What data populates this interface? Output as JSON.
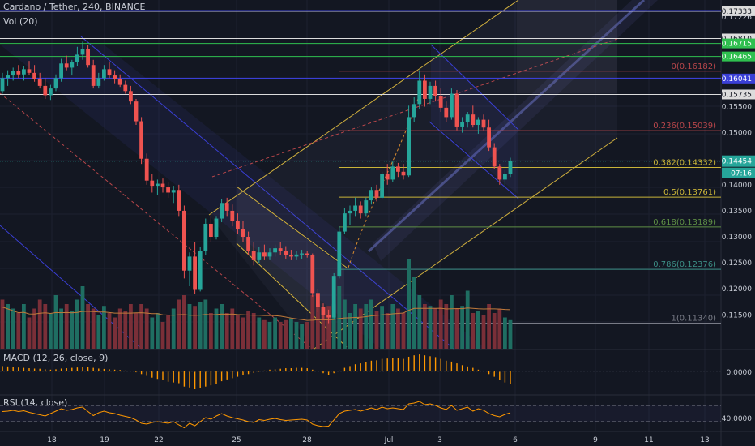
{
  "header": {
    "symbol_title": "Cardano / Tether, 240, BINANCE",
    "volume_label": "Vol (20)",
    "macd_label": "MACD (12, 26, close, 9)",
    "rsi_label": "RSI (14, close)",
    "countdown": "07:16"
  },
  "colors": {
    "background": "#131722",
    "up": "#26a69a",
    "down": "#ef5350",
    "vol_up": "#1f6e62",
    "vol_down": "#7a2f38",
    "channel": "#3a3fd6",
    "channel_yellow": "#d6b43a",
    "fib_red": "#b8464a",
    "fib_yellow": "#c9b438",
    "fib_green": "#5f8f45",
    "fib_teal": "#3c8f86",
    "fib_grey": "#787b86",
    "rsi": "#ff9800",
    "macd_hist": "#ff9800"
  },
  "chart_data": {
    "type": "candlestick",
    "title": "Cardano / Tether, 240, BINANCE",
    "x_tick_labels": [
      "18",
      "19",
      "22",
      "25",
      "28",
      "Jul",
      "3",
      "6",
      "9",
      "11",
      "13"
    ],
    "price_axis_ticks": [
      "0.17339",
      "0.17333",
      "0.17226",
      "0.16810",
      "0.16715",
      "0.16465",
      "0.16041",
      "0.15735",
      "0.15500",
      "0.15000",
      "0.14454",
      "0.14000",
      "0.13500",
      "0.13000",
      "0.12500",
      "0.12000",
      "0.11500"
    ],
    "price_range": [
      0.1085,
      0.1755
    ],
    "last_price": "0.14454",
    "fibonacci_levels": [
      {
        "ratio": "0",
        "price": "0.16182",
        "label": "0(0.16182)",
        "color": "#b8464a"
      },
      {
        "ratio": "0.236",
        "price": "0.15039",
        "label": "0.236(0.15039)",
        "color": "#b8464a"
      },
      {
        "ratio": "0.382",
        "price": "0.14332",
        "label": "0.382(0.14332)",
        "color": "#c9b438"
      },
      {
        "ratio": "0.5",
        "price": "0.13761",
        "label": "0.5(0.13761)",
        "color": "#c9b438"
      },
      {
        "ratio": "0.618",
        "price": "0.13189",
        "label": "0.618(0.13189)",
        "color": "#5f8f45"
      },
      {
        "ratio": "0.786",
        "price": "0.12376",
        "label": "0.786(0.12376)",
        "color": "#3c8f86"
      },
      {
        "ratio": "1",
        "price": "0.11340",
        "label": "1(0.11340)",
        "color": "#787b86"
      }
    ],
    "horizontal_levels": [
      {
        "price": "0.17339",
        "color": "#3a3fd6"
      },
      {
        "price": "0.17333",
        "color": "#dcdcdc"
      },
      {
        "price": "0.16810",
        "color": "#dcdcdc"
      },
      {
        "price": "0.16715",
        "color": "#2fbf4f"
      },
      {
        "price": "0.16465",
        "color": "#2fbf4f"
      },
      {
        "price": "0.16041",
        "color": "#3a3fd6"
      },
      {
        "price": "0.15735",
        "color": "#dcdcdc"
      }
    ],
    "candles": [
      [
        0.158,
        0.1615,
        0.1575,
        0.1605
      ],
      [
        0.1605,
        0.162,
        0.159,
        0.161
      ],
      [
        0.161,
        0.1625,
        0.16,
        0.1618
      ],
      [
        0.1618,
        0.163,
        0.1605,
        0.1612
      ],
      [
        0.1612,
        0.1628,
        0.16,
        0.1622
      ],
      [
        0.1622,
        0.1638,
        0.161,
        0.1615
      ],
      [
        0.1615,
        0.163,
        0.1598,
        0.1603
      ],
      [
        0.1603,
        0.1615,
        0.1585,
        0.159
      ],
      [
        0.159,
        0.1605,
        0.1565,
        0.1572
      ],
      [
        0.1572,
        0.1592,
        0.1563,
        0.1585
      ],
      [
        0.1585,
        0.1612,
        0.158,
        0.1605
      ],
      [
        0.1605,
        0.1642,
        0.1598,
        0.1633
      ],
      [
        0.1633,
        0.1648,
        0.162,
        0.1625
      ],
      [
        0.1625,
        0.164,
        0.161,
        0.1635
      ],
      [
        0.1635,
        0.1665,
        0.1628,
        0.165
      ],
      [
        0.165,
        0.1675,
        0.164,
        0.166
      ],
      [
        0.166,
        0.1668,
        0.1625,
        0.163
      ],
      [
        0.163,
        0.164,
        0.1585,
        0.159
      ],
      [
        0.159,
        0.1615,
        0.1585,
        0.1605
      ],
      [
        0.1605,
        0.163,
        0.16,
        0.1622
      ],
      [
        0.1622,
        0.1635,
        0.1605,
        0.161
      ],
      [
        0.161,
        0.162,
        0.1595,
        0.1603
      ],
      [
        0.1603,
        0.1612,
        0.1588,
        0.1592
      ],
      [
        0.1592,
        0.16,
        0.1575,
        0.158
      ],
      [
        0.158,
        0.159,
        0.1555,
        0.156
      ],
      [
        0.156,
        0.1565,
        0.1515,
        0.1522
      ],
      [
        0.1522,
        0.153,
        0.144,
        0.145
      ],
      [
        0.145,
        0.146,
        0.14,
        0.1408
      ],
      [
        0.1408,
        0.142,
        0.1385,
        0.1398
      ],
      [
        0.1398,
        0.141,
        0.138,
        0.1402
      ],
      [
        0.1402,
        0.1412,
        0.1385,
        0.1395
      ],
      [
        0.1395,
        0.1405,
        0.1375,
        0.1385
      ],
      [
        0.1385,
        0.1398,
        0.1365,
        0.139
      ],
      [
        0.139,
        0.14,
        0.134,
        0.135
      ],
      [
        0.135,
        0.136,
        0.122,
        0.1235
      ],
      [
        0.1235,
        0.127,
        0.1205,
        0.1262
      ],
      [
        0.1262,
        0.129,
        0.119,
        0.1198
      ],
      [
        0.1198,
        0.128,
        0.1195,
        0.1272
      ],
      [
        0.1272,
        0.1335,
        0.1265,
        0.1325
      ],
      [
        0.1325,
        0.134,
        0.129,
        0.13
      ],
      [
        0.13,
        0.134,
        0.1295,
        0.1335
      ],
      [
        0.1335,
        0.1372,
        0.1328,
        0.1365
      ],
      [
        0.1365,
        0.1375,
        0.134,
        0.135
      ],
      [
        0.135,
        0.1362,
        0.132,
        0.133
      ],
      [
        0.133,
        0.1345,
        0.1305,
        0.1315
      ],
      [
        0.1315,
        0.133,
        0.129,
        0.13
      ],
      [
        0.13,
        0.131,
        0.1265,
        0.1272
      ],
      [
        0.1272,
        0.129,
        0.1245,
        0.1255
      ],
      [
        0.1255,
        0.128,
        0.125,
        0.127
      ],
      [
        0.127,
        0.1285,
        0.1255,
        0.1262
      ],
      [
        0.1262,
        0.1278,
        0.1255,
        0.127
      ],
      [
        0.127,
        0.1285,
        0.1262,
        0.1278
      ],
      [
        0.1278,
        0.129,
        0.1265,
        0.1272
      ],
      [
        0.1272,
        0.1282,
        0.1258,
        0.1265
      ],
      [
        0.1265,
        0.1275,
        0.1255,
        0.1262
      ],
      [
        0.1262,
        0.1272,
        0.1255,
        0.1266
      ],
      [
        0.1266,
        0.1275,
        0.1258,
        0.1268
      ],
      [
        0.1268,
        0.1272,
        0.126,
        0.1265
      ],
      [
        0.1265,
        0.1268,
        0.1185,
        0.1192
      ],
      [
        0.1192,
        0.12,
        0.1155,
        0.1165
      ],
      [
        0.1165,
        0.1172,
        0.114,
        0.115
      ],
      [
        0.115,
        0.116,
        0.1134,
        0.1145
      ],
      [
        0.1145,
        0.123,
        0.1142,
        0.1225
      ],
      [
        0.1225,
        0.132,
        0.122,
        0.131
      ],
      [
        0.131,
        0.1355,
        0.1305,
        0.1345
      ],
      [
        0.1345,
        0.136,
        0.1322,
        0.135
      ],
      [
        0.135,
        0.1375,
        0.134,
        0.136
      ],
      [
        0.136,
        0.1368,
        0.1335,
        0.1345
      ],
      [
        0.1345,
        0.1375,
        0.134,
        0.137
      ],
      [
        0.137,
        0.1395,
        0.1362,
        0.139
      ],
      [
        0.139,
        0.14,
        0.1368,
        0.1375
      ],
      [
        0.1375,
        0.1425,
        0.1372,
        0.142
      ],
      [
        0.142,
        0.144,
        0.14,
        0.141
      ],
      [
        0.141,
        0.1445,
        0.1405,
        0.1435
      ],
      [
        0.1435,
        0.1442,
        0.1415,
        0.1425
      ],
      [
        0.1425,
        0.144,
        0.141,
        0.1418
      ],
      [
        0.1418,
        0.1552,
        0.1415,
        0.153
      ],
      [
        0.153,
        0.1568,
        0.152,
        0.1555
      ],
      [
        0.1555,
        0.162,
        0.1545,
        0.16
      ],
      [
        0.16,
        0.1612,
        0.155,
        0.1565
      ],
      [
        0.1565,
        0.1598,
        0.1555,
        0.159
      ],
      [
        0.159,
        0.16,
        0.156,
        0.157
      ],
      [
        0.157,
        0.1585,
        0.154,
        0.1548
      ],
      [
        0.1548,
        0.156,
        0.152,
        0.153
      ],
      [
        0.153,
        0.1585,
        0.1525,
        0.1575
      ],
      [
        0.1575,
        0.1582,
        0.1505,
        0.1512
      ],
      [
        0.1512,
        0.153,
        0.15,
        0.152
      ],
      [
        0.152,
        0.154,
        0.151,
        0.1535
      ],
      [
        0.1535,
        0.1552,
        0.151,
        0.1515
      ],
      [
        0.1515,
        0.153,
        0.1498,
        0.1525
      ],
      [
        0.1525,
        0.1535,
        0.1505,
        0.151
      ],
      [
        0.151,
        0.1525,
        0.1465,
        0.1472
      ],
      [
        0.1472,
        0.148,
        0.143,
        0.1435
      ],
      [
        0.1435,
        0.144,
        0.14,
        0.141
      ],
      [
        0.141,
        0.1428,
        0.1395,
        0.142
      ],
      [
        0.142,
        0.1452,
        0.1415,
        0.1445
      ]
    ],
    "volume": [
      [
        0.55,
        0
      ],
      [
        0.5,
        1
      ],
      [
        0.45,
        1
      ],
      [
        0.4,
        0
      ],
      [
        0.5,
        1
      ],
      [
        0.35,
        0
      ],
      [
        0.45,
        0
      ],
      [
        0.55,
        0
      ],
      [
        0.5,
        0
      ],
      [
        0.4,
        1
      ],
      [
        0.6,
        1
      ],
      [
        0.45,
        1
      ],
      [
        0.5,
        0
      ],
      [
        0.42,
        1
      ],
      [
        0.55,
        1
      ],
      [
        0.7,
        1
      ],
      [
        0.5,
        0
      ],
      [
        0.45,
        0
      ],
      [
        0.38,
        1
      ],
      [
        0.48,
        1
      ],
      [
        0.4,
        0
      ],
      [
        0.35,
        0
      ],
      [
        0.45,
        0
      ],
      [
        0.42,
        0
      ],
      [
        0.5,
        0
      ],
      [
        0.4,
        0
      ],
      [
        0.5,
        0
      ],
      [
        0.45,
        0
      ],
      [
        0.35,
        1
      ],
      [
        0.4,
        1
      ],
      [
        0.3,
        0
      ],
      [
        0.38,
        0
      ],
      [
        0.45,
        1
      ],
      [
        0.55,
        0
      ],
      [
        0.6,
        0
      ],
      [
        0.5,
        1
      ],
      [
        0.48,
        0
      ],
      [
        0.52,
        1
      ],
      [
        0.55,
        1
      ],
      [
        0.4,
        0
      ],
      [
        0.45,
        1
      ],
      [
        0.5,
        1
      ],
      [
        0.4,
        0
      ],
      [
        0.45,
        0
      ],
      [
        0.38,
        0
      ],
      [
        0.35,
        0
      ],
      [
        0.42,
        0
      ],
      [
        0.4,
        0
      ],
      [
        0.35,
        1
      ],
      [
        0.32,
        0
      ],
      [
        0.3,
        1
      ],
      [
        0.35,
        1
      ],
      [
        0.3,
        0
      ],
      [
        0.32,
        0
      ],
      [
        0.34,
        1
      ],
      [
        0.3,
        1
      ],
      [
        0.28,
        1
      ],
      [
        0.3,
        0
      ],
      [
        0.6,
        0
      ],
      [
        0.5,
        0
      ],
      [
        0.45,
        0
      ],
      [
        0.48,
        0
      ],
      [
        0.5,
        1
      ],
      [
        0.7,
        1
      ],
      [
        0.55,
        1
      ],
      [
        0.4,
        1
      ],
      [
        0.5,
        1
      ],
      [
        0.45,
        0
      ],
      [
        0.5,
        1
      ],
      [
        0.55,
        1
      ],
      [
        0.42,
        0
      ],
      [
        0.48,
        1
      ],
      [
        0.4,
        0
      ],
      [
        0.5,
        1
      ],
      [
        0.45,
        0
      ],
      [
        0.4,
        0
      ],
      [
        1.0,
        1
      ],
      [
        0.8,
        1
      ],
      [
        0.6,
        1
      ],
      [
        0.5,
        0
      ],
      [
        0.48,
        1
      ],
      [
        0.45,
        0
      ],
      [
        0.55,
        0
      ],
      [
        0.5,
        0
      ],
      [
        0.6,
        1
      ],
      [
        0.45,
        0
      ],
      [
        0.48,
        1
      ],
      [
        0.65,
        1
      ],
      [
        0.4,
        0
      ],
      [
        0.42,
        1
      ],
      [
        0.38,
        0
      ],
      [
        0.5,
        0
      ],
      [
        0.4,
        0
      ],
      [
        0.45,
        0
      ],
      [
        0.35,
        1
      ],
      [
        0.32,
        1
      ]
    ],
    "macd_histogram": [
      0.3,
      0.28,
      0.26,
      0.22,
      0.2,
      0.18,
      0.16,
      0.15,
      0.12,
      0.1,
      0.12,
      0.16,
      0.18,
      0.2,
      0.22,
      0.26,
      0.24,
      0.2,
      0.16,
      0.14,
      0.12,
      0.1,
      0.08,
      0.05,
      0.02,
      -0.05,
      -0.15,
      -0.25,
      -0.35,
      -0.42,
      -0.5,
      -0.58,
      -0.62,
      -0.66,
      -0.85,
      -0.9,
      -1.0,
      -0.95,
      -0.85,
      -0.78,
      -0.7,
      -0.55,
      -0.45,
      -0.38,
      -0.3,
      -0.22,
      -0.15,
      -0.08,
      -0.02,
      0.05,
      0.1,
      0.12,
      0.15,
      0.18,
      0.18,
      0.2,
      0.2,
      0.18,
      0.1,
      0.0,
      -0.1,
      -0.2,
      -0.1,
      0.05,
      0.2,
      0.3,
      0.4,
      0.45,
      0.52,
      0.6,
      0.62,
      0.7,
      0.72,
      0.75,
      0.75,
      0.7,
      0.82,
      0.9,
      0.95,
      0.9,
      0.85,
      0.8,
      0.7,
      0.6,
      0.55,
      0.45,
      0.35,
      0.28,
      0.2,
      0.1,
      0.0,
      -0.15,
      -0.3,
      -0.5,
      -0.62,
      -0.7
    ],
    "rsi_values": [
      55,
      56,
      58,
      55,
      57,
      53,
      50,
      47,
      44,
      50,
      56,
      62,
      58,
      60,
      64,
      66,
      55,
      45,
      52,
      56,
      52,
      50,
      46,
      43,
      40,
      34,
      26,
      24,
      28,
      30,
      28,
      26,
      30,
      22,
      15,
      26,
      20,
      30,
      40,
      36,
      44,
      50,
      44,
      40,
      37,
      34,
      30,
      28,
      35,
      33,
      36,
      38,
      35,
      33,
      34,
      35,
      36,
      34,
      24,
      20,
      18,
      19,
      34,
      50,
      56,
      58,
      60,
      56,
      60,
      64,
      60,
      66,
      62,
      64,
      62,
      60,
      74,
      76,
      80,
      72,
      74,
      70,
      64,
      60,
      70,
      58,
      62,
      66,
      56,
      62,
      58,
      50,
      45,
      42,
      48,
      52
    ],
    "rsi_levels": [
      "70",
      "30"
    ],
    "rsi_axis_label": "40.0000",
    "macd_axis_label": "0.0000"
  }
}
